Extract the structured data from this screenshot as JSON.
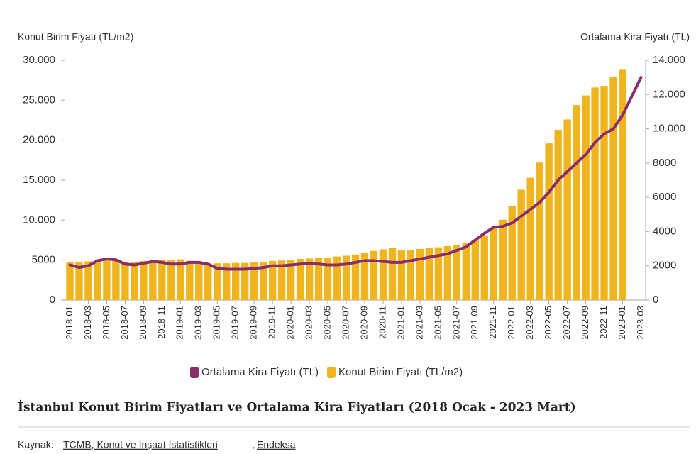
{
  "chart_data": {
    "type": "bar_line",
    "title": "İstanbul Konut Birim Fiyatları ve Ortalama Kira Fiyatları (2018 Ocak - 2023 Mart)",
    "ylabel": "Konut Birim Fiyatı (TL/m2)",
    "y2label": "Ortalama Kira Fiyatı (TL)",
    "source": {
      "label": "Kaynak:",
      "links": [
        "TCMB, Konut ve İnşaat İstatistikleri",
        "Endeksa"
      ]
    },
    "categories": [
      "2018-01",
      null,
      "2018-03",
      null,
      "2018-05",
      null,
      "2018-07",
      null,
      "2018-09",
      null,
      "2018-11",
      null,
      "2019-01",
      null,
      "2019-03",
      null,
      "2019-05",
      null,
      "2019-07",
      null,
      "2019-09",
      null,
      "2019-11",
      null,
      "2020-01",
      null,
      "2020-03",
      null,
      "2020-05",
      null,
      "2020-07",
      null,
      "2020-09",
      null,
      "2020-11",
      null,
      "2021-01",
      null,
      "2021-03",
      null,
      "2021-05",
      null,
      "2021-07",
      null,
      "2021-09",
      null,
      "2021-11",
      null,
      "2022-01",
      null,
      "2022-03",
      null,
      "2022-05",
      null,
      "2022-07",
      null,
      "2022-09",
      null,
      "2022-11",
      null,
      "2023-01",
      null,
      "2023-03"
    ],
    "series": [
      {
        "name": "Ortalama Kira Fiyatı (TL)",
        "type": "line",
        "axis": "y2",
        "color": "#8b2d6b",
        "values": [
          2050,
          1900,
          2000,
          2300,
          2400,
          2350,
          2100,
          2050,
          2150,
          2250,
          2200,
          2100,
          2100,
          2200,
          2200,
          2100,
          1850,
          1800,
          1800,
          1800,
          1850,
          1900,
          2000,
          2000,
          2050,
          2100,
          2150,
          2100,
          2050,
          2050,
          2100,
          2200,
          2300,
          2300,
          2250,
          2200,
          2200,
          2300,
          2400,
          2500,
          2600,
          2700,
          2900,
          3100,
          3500,
          3900,
          4250,
          4300,
          4500,
          4900,
          5300,
          5700,
          6300,
          7000,
          7500,
          8000,
          8500,
          9200,
          9700,
          10000,
          10800,
          11900,
          13000
        ]
      },
      {
        "name": "Konut Birim Fiyatı (TL/m2)",
        "type": "bar",
        "axis": "y",
        "color": "#f0b41e",
        "values": [
          4750,
          4800,
          4850,
          4900,
          4950,
          4900,
          4800,
          4800,
          4900,
          5000,
          5050,
          5050,
          5100,
          4900,
          4700,
          4600,
          4600,
          4600,
          4650,
          4650,
          4700,
          4800,
          4900,
          4950,
          5050,
          5150,
          5200,
          5250,
          5300,
          5450,
          5550,
          5700,
          5950,
          6150,
          6350,
          6500,
          6250,
          6300,
          6400,
          6500,
          6600,
          6750,
          6900,
          7200,
          7500,
          8100,
          9000,
          10050,
          11800,
          13800,
          15300,
          17200,
          19600,
          21300,
          22600,
          24400,
          25600,
          26600,
          26800,
          27900,
          28900,
          null,
          null
        ]
      }
    ],
    "ylim": [
      0,
      30000
    ],
    "yticks": [
      0,
      5000,
      {
        "value": 10000,
        "label": "10.000"
      },
      {
        "value": 15000,
        "label": "15.000"
      },
      {
        "value": 20000,
        "label": "20.000"
      },
      {
        "value": 25000,
        "label": "25.000"
      },
      {
        "value": 30000,
        "label": "30.000"
      }
    ],
    "y2lim": [
      0,
      14000
    ],
    "y2ticks": [
      0,
      2000,
      4000,
      6000,
      8000,
      {
        "value": 10000,
        "label": "10.000"
      },
      {
        "value": 12000,
        "label": "12.000"
      },
      {
        "value": 14000,
        "label": "14.000"
      }
    ],
    "grid": false,
    "legend": "bottom"
  }
}
